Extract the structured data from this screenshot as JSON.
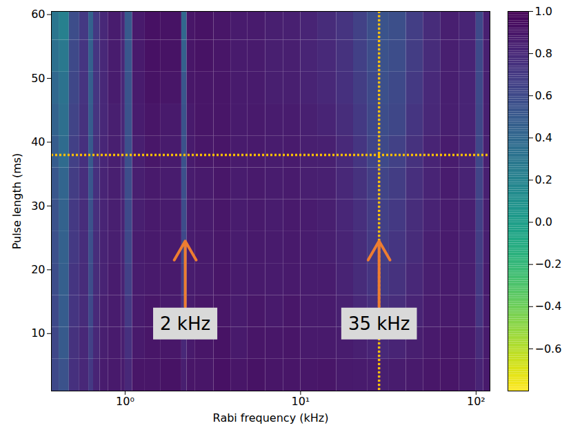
{
  "chart_data": {
    "type": "heatmap",
    "x_label": "Rabi frequency (kHz)",
    "y_label": "Pulse length (ms)",
    "log": "x",
    "xlim": [
      0.38,
      120
    ],
    "xticks": [
      {
        "value": 1,
        "label": "10⁰"
      },
      {
        "value": 10,
        "label": "10¹"
      },
      {
        "value": 100,
        "label": "10²"
      }
    ],
    "ylim": [
      1,
      60.5
    ],
    "yticks": [
      10,
      20,
      30,
      40,
      50,
      60
    ],
    "x_bins": [
      0.38,
      0.42,
      0.48,
      0.55,
      0.62,
      0.66,
      0.72,
      0.8,
      0.95,
      1.0,
      1.1,
      1.3,
      1.6,
      2.1,
      2.25,
      2.5,
      3.2,
      4,
      5,
      6.3,
      8,
      10,
      12.5,
      16,
      20,
      24,
      28,
      32,
      40,
      50,
      63,
      80,
      100,
      110,
      120
    ],
    "y_bins": [
      1,
      6,
      11,
      16,
      21,
      26,
      31,
      36,
      41,
      46,
      51,
      56,
      60.5
    ],
    "cells": [
      [
        0.6,
        0.55,
        0.75,
        0.8,
        0.7,
        0.82,
        0.86,
        0.88,
        0.86,
        0.8,
        0.9,
        0.9,
        0.91,
        0.85,
        0.9,
        0.9,
        0.92,
        0.9,
        0.91,
        0.9,
        0.9,
        0.89,
        0.9,
        0.88,
        0.87,
        0.86,
        0.85,
        0.86,
        0.88,
        0.89,
        0.9,
        0.88,
        0.82,
        0.88
      ],
      [
        0.62,
        0.5,
        0.74,
        0.8,
        0.65,
        0.8,
        0.85,
        0.87,
        0.85,
        0.75,
        0.88,
        0.9,
        0.89,
        0.8,
        0.88,
        0.9,
        0.91,
        0.88,
        0.9,
        0.89,
        0.9,
        0.88,
        0.88,
        0.86,
        0.84,
        0.82,
        0.8,
        0.82,
        0.85,
        0.88,
        0.89,
        0.87,
        0.78,
        0.87
      ],
      [
        0.6,
        0.48,
        0.72,
        0.78,
        0.6,
        0.79,
        0.84,
        0.86,
        0.84,
        0.7,
        0.87,
        0.89,
        0.88,
        0.72,
        0.87,
        0.89,
        0.9,
        0.87,
        0.89,
        0.88,
        0.89,
        0.87,
        0.87,
        0.84,
        0.8,
        0.76,
        0.74,
        0.77,
        0.82,
        0.86,
        0.88,
        0.86,
        0.72,
        0.86
      ],
      [
        0.58,
        0.46,
        0.72,
        0.78,
        0.58,
        0.78,
        0.83,
        0.86,
        0.83,
        0.66,
        0.86,
        0.88,
        0.88,
        0.66,
        0.86,
        0.88,
        0.9,
        0.87,
        0.88,
        0.87,
        0.88,
        0.86,
        0.86,
        0.83,
        0.78,
        0.72,
        0.7,
        0.74,
        0.8,
        0.85,
        0.87,
        0.85,
        0.7,
        0.86
      ],
      [
        0.56,
        0.45,
        0.7,
        0.77,
        0.56,
        0.77,
        0.83,
        0.85,
        0.82,
        0.62,
        0.86,
        0.88,
        0.87,
        0.6,
        0.86,
        0.88,
        0.89,
        0.86,
        0.88,
        0.87,
        0.88,
        0.86,
        0.85,
        0.82,
        0.77,
        0.7,
        0.67,
        0.72,
        0.78,
        0.84,
        0.87,
        0.84,
        0.68,
        0.85
      ],
      [
        0.55,
        0.44,
        0.7,
        0.77,
        0.55,
        0.76,
        0.82,
        0.85,
        0.82,
        0.6,
        0.85,
        0.88,
        0.87,
        0.58,
        0.86,
        0.88,
        0.89,
        0.86,
        0.88,
        0.86,
        0.88,
        0.86,
        0.85,
        0.81,
        0.76,
        0.69,
        0.66,
        0.7,
        0.77,
        0.83,
        0.86,
        0.84,
        0.66,
        0.85
      ],
      [
        0.52,
        0.42,
        0.68,
        0.76,
        0.52,
        0.75,
        0.82,
        0.85,
        0.8,
        0.58,
        0.85,
        0.88,
        0.86,
        0.56,
        0.86,
        0.88,
        0.89,
        0.86,
        0.88,
        0.86,
        0.87,
        0.85,
        0.84,
        0.8,
        0.74,
        0.67,
        0.64,
        0.68,
        0.76,
        0.82,
        0.86,
        0.83,
        0.64,
        0.84
      ],
      [
        0.48,
        0.38,
        0.66,
        0.75,
        0.5,
        0.74,
        0.81,
        0.85,
        0.8,
        0.56,
        0.85,
        0.89,
        0.87,
        0.55,
        0.87,
        0.89,
        0.9,
        0.87,
        0.88,
        0.86,
        0.87,
        0.85,
        0.84,
        0.79,
        0.72,
        0.64,
        0.6,
        0.65,
        0.74,
        0.82,
        0.86,
        0.83,
        0.62,
        0.84
      ],
      [
        0.44,
        0.35,
        0.64,
        0.74,
        0.48,
        0.73,
        0.8,
        0.85,
        0.8,
        0.55,
        0.86,
        0.9,
        0.88,
        0.54,
        0.88,
        0.9,
        0.9,
        0.87,
        0.88,
        0.86,
        0.86,
        0.84,
        0.82,
        0.77,
        0.7,
        0.62,
        0.58,
        0.62,
        0.72,
        0.8,
        0.85,
        0.82,
        0.62,
        0.84
      ],
      [
        0.4,
        0.32,
        0.62,
        0.73,
        0.46,
        0.72,
        0.8,
        0.86,
        0.8,
        0.54,
        0.87,
        0.91,
        0.9,
        0.52,
        0.89,
        0.9,
        0.9,
        0.87,
        0.87,
        0.85,
        0.85,
        0.83,
        0.8,
        0.75,
        0.68,
        0.6,
        0.56,
        0.6,
        0.7,
        0.79,
        0.85,
        0.82,
        0.6,
        0.84
      ],
      [
        0.34,
        0.28,
        0.6,
        0.72,
        0.45,
        0.72,
        0.8,
        0.86,
        0.8,
        0.52,
        0.88,
        0.92,
        0.91,
        0.45,
        0.9,
        0.91,
        0.9,
        0.87,
        0.87,
        0.85,
        0.85,
        0.82,
        0.79,
        0.74,
        0.66,
        0.58,
        0.55,
        0.58,
        0.68,
        0.78,
        0.85,
        0.82,
        0.6,
        0.84
      ],
      [
        0.3,
        0.22,
        0.58,
        0.7,
        0.44,
        0.7,
        0.8,
        0.86,
        0.8,
        0.5,
        0.88,
        0.92,
        0.91,
        0.4,
        0.9,
        0.91,
        0.9,
        0.87,
        0.87,
        0.85,
        0.84,
        0.82,
        0.78,
        0.73,
        0.65,
        0.57,
        0.54,
        0.57,
        0.67,
        0.78,
        0.85,
        0.82,
        0.6,
        0.84
      ]
    ],
    "colorbar": {
      "range": [
        -0.8,
        1.0
      ],
      "ticks": [
        {
          "value": 1.0,
          "label": "1.0"
        },
        {
          "value": 0.8,
          "label": "0.8"
        },
        {
          "value": 0.6,
          "label": "0.6"
        },
        {
          "value": 0.4,
          "label": "0.4"
        },
        {
          "value": 0.2,
          "label": "0.2"
        },
        {
          "value": 0.0,
          "label": "0.0"
        },
        {
          "value": -0.2,
          "label": "−0.2"
        },
        {
          "value": -0.4,
          "label": "−0.4"
        },
        {
          "value": -0.6,
          "label": "−0.6"
        }
      ]
    },
    "reference_lines": [
      {
        "axis": "x",
        "value": 28,
        "color": "#ffc000",
        "line_style": "dotted"
      },
      {
        "axis": "y",
        "value": 38,
        "color": "#ffc000",
        "line_style": "dotted"
      }
    ],
    "annotations": [
      {
        "text": "2 kHz",
        "x": 2.2,
        "y": 11.5,
        "arrow_from": 14.2,
        "arrow_to": 24.5,
        "color": "#ed7d31"
      },
      {
        "text": "35 kHz",
        "x": 28,
        "y": 11.5,
        "arrow_from": 14.2,
        "arrow_to": 24.5,
        "color": "#ed7d31"
      }
    ]
  }
}
